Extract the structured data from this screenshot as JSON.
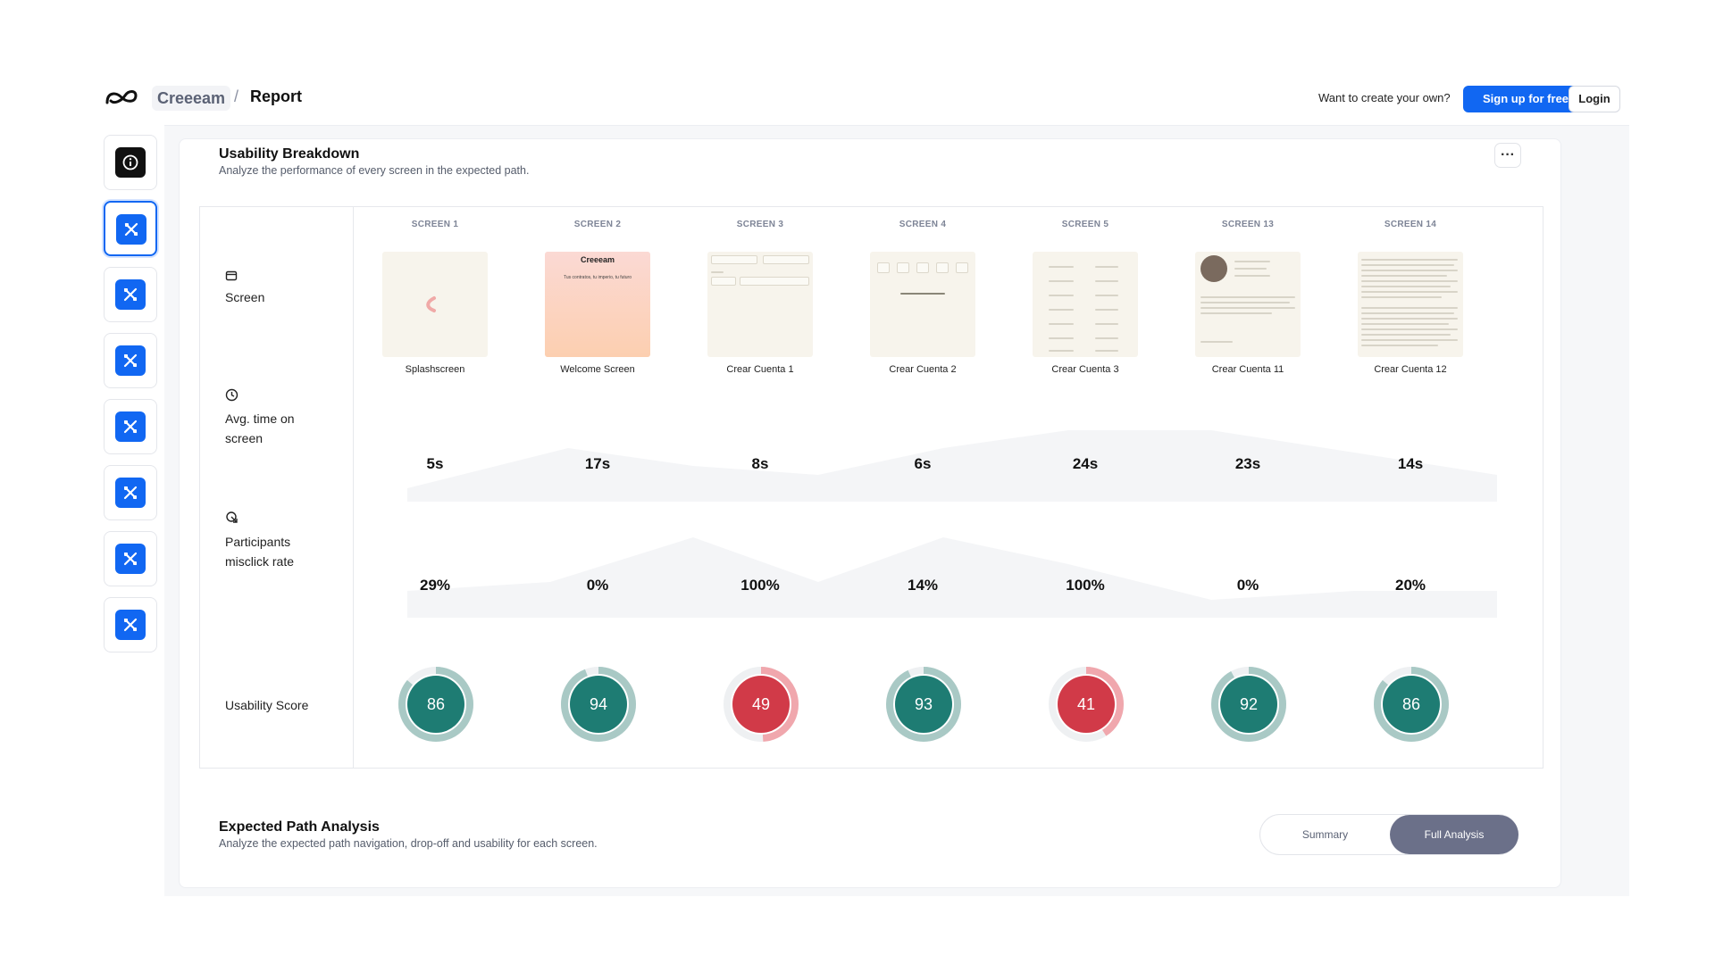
{
  "header": {
    "breadcrumb_home": "Creeeam",
    "breadcrumb_sep": "/",
    "breadcrumb_page": "Report",
    "cta_text": "Want to create your own?",
    "signup_label": "Sign up for free",
    "login_label": "Login"
  },
  "breakdown": {
    "title": "Usability Breakdown",
    "subtitle": "Analyze the performance of every screen in the expected path.",
    "more": "···",
    "row_labels": {
      "screen": "Screen",
      "avg_time_line1": "Avg. time on",
      "avg_time_line2": "screen",
      "misclick_line1": "Participants",
      "misclick_line2": "misclick rate",
      "score": "Usability Score"
    },
    "columns": [
      {
        "head": "SCREEN 1",
        "name": "Splashscreen",
        "time": "5s",
        "misclick": "29%",
        "score": "86",
        "status": "good"
      },
      {
        "head": "SCREEN 2",
        "name": "Welcome Screen",
        "time": "17s",
        "misclick": "0%",
        "score": "94",
        "status": "good"
      },
      {
        "head": "SCREEN 3",
        "name": "Crear Cuenta 1",
        "time": "8s",
        "misclick": "100%",
        "score": "49",
        "status": "bad"
      },
      {
        "head": "SCREEN 4",
        "name": "Crear Cuenta 2",
        "time": "6s",
        "misclick": "14%",
        "score": "93",
        "status": "good"
      },
      {
        "head": "SCREEN 5",
        "name": "Crear Cuenta 3",
        "time": "24s",
        "misclick": "100%",
        "score": "41",
        "status": "bad"
      },
      {
        "head": "SCREEN 13",
        "name": "Crear Cuenta 11",
        "time": "23s",
        "misclick": "0%",
        "score": "92",
        "status": "good"
      },
      {
        "head": "SCREEN 14",
        "name": "Crear Cuenta 12",
        "time": "14s",
        "misclick": "20%",
        "score": "86",
        "status": "good"
      }
    ],
    "thumb_text": {
      "welcome_title": "Creeeam",
      "welcome_tagline": "Tus contratos, tu imperio, tu futuro"
    }
  },
  "path_analysis": {
    "title": "Expected Path Analysis",
    "subtitle": "Analyze the expected path navigation, drop-off and usability for each screen.",
    "toggle_summary": "Summary",
    "toggle_full": "Full Analysis"
  },
  "colors": {
    "accent": "#1167f2",
    "good": "#1e7c73",
    "good_ring": "#a9c9c5",
    "bad": "#d13a48",
    "bad_ring": "#f0a7ad",
    "toggle_active": "#6b7089"
  },
  "sidebar_icons": [
    "info-icon",
    "tools-icon",
    "tools-icon",
    "tools-icon",
    "tools-icon",
    "tools-icon",
    "tools-icon",
    "tools-icon"
  ]
}
